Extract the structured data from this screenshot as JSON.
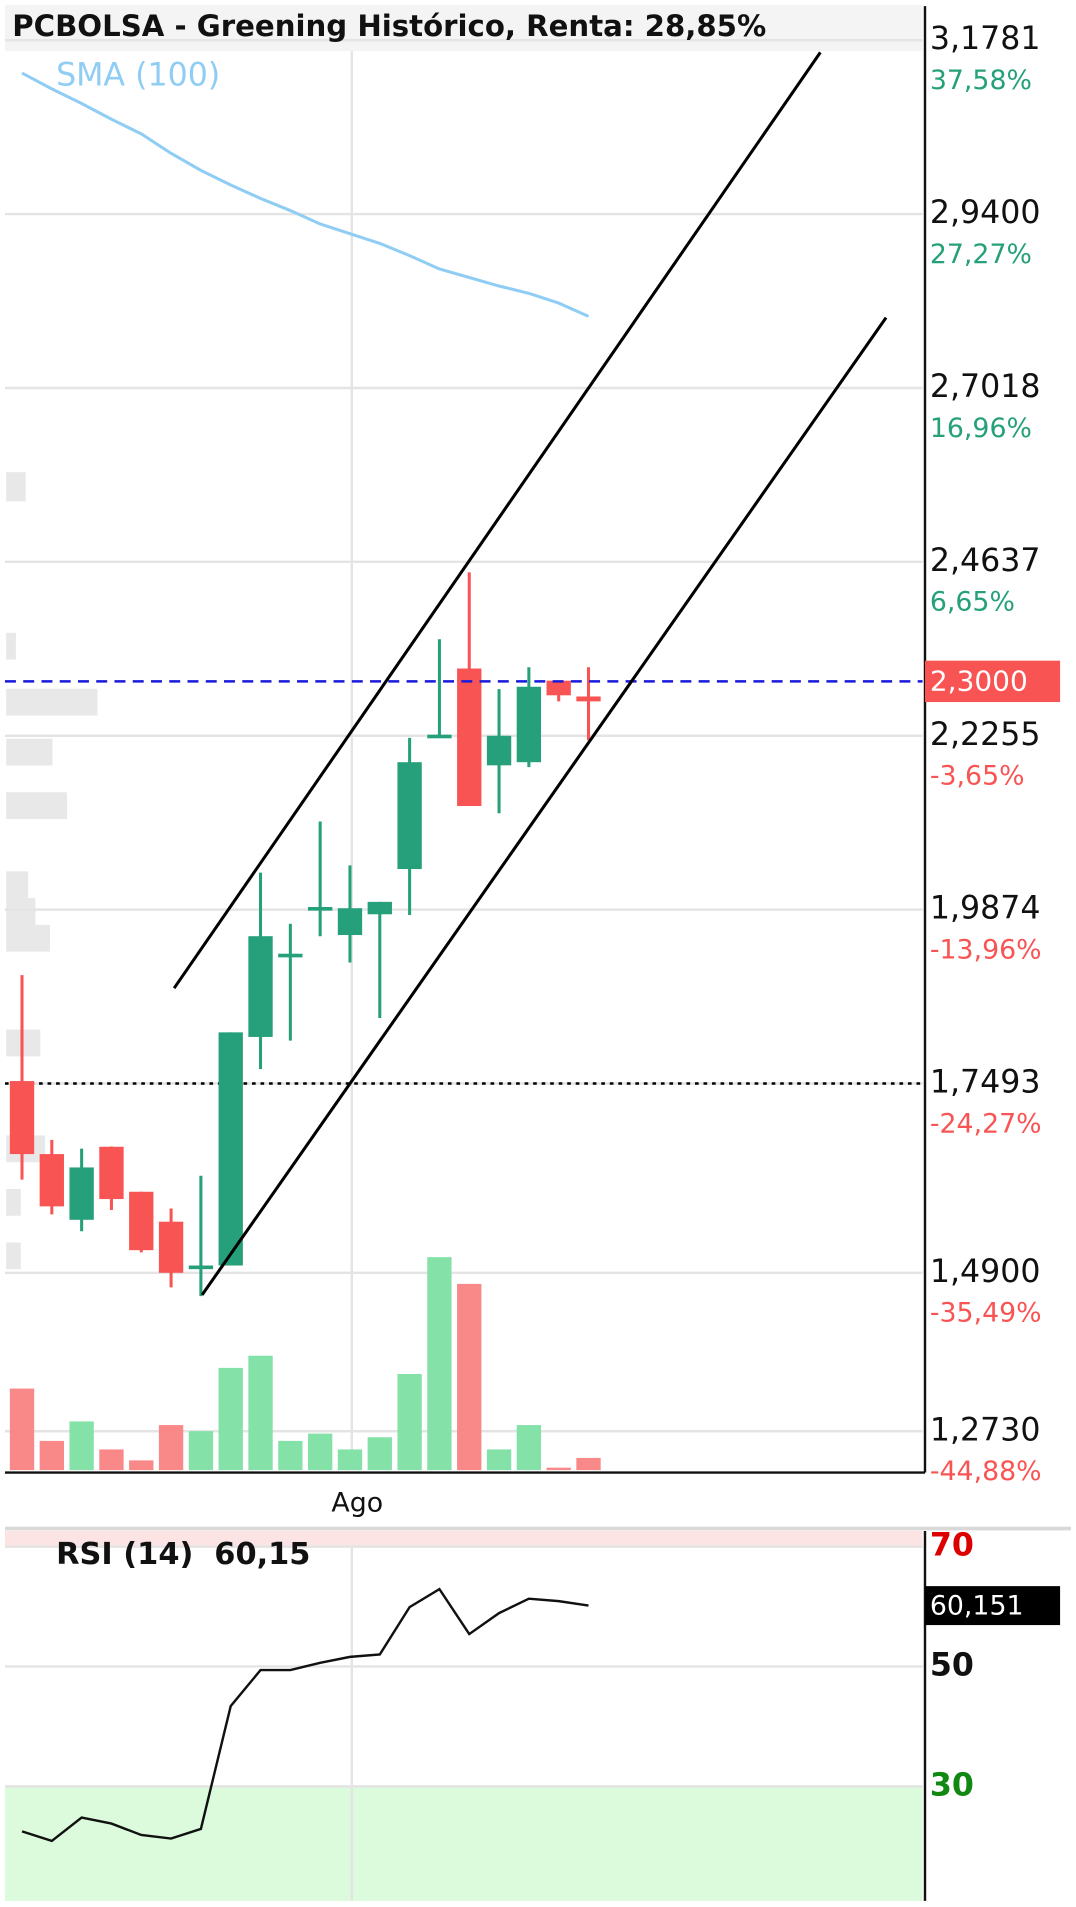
{
  "chart_data": [
    {
      "type": "candlestick",
      "title": "PCBOLSA - Greening Histórico, Renta: 28,85%",
      "categories": [
        null,
        null,
        null,
        null,
        null,
        null,
        null,
        null,
        null,
        null,
        null,
        "Ago",
        null,
        null,
        null,
        null,
        null,
        null,
        null,
        null
      ],
      "open": [
        1.7526,
        1.6526,
        1.5626,
        1.6626,
        1.601,
        1.56,
        1.498,
        1.5,
        1.813,
        1.925,
        1.99,
        1.9526,
        1.981,
        2.043,
        2.225,
        2.3176,
        2.185,
        2.1893,
        2.3009,
        2.2793
      ],
      "close": [
        1.6526,
        1.581,
        1.6343,
        1.591,
        1.521,
        1.49,
        1.5,
        1.8193,
        1.951,
        1.927,
        1.991,
        1.9893,
        1.998,
        2.1893,
        2.227,
        2.1293,
        2.2255,
        2.2926,
        2.2809,
        2.2726
      ],
      "high": [
        1.8976,
        1.672,
        1.66,
        1.663,
        1.601,
        1.578,
        1.623,
        1.8193,
        2.038,
        1.968,
        2.108,
        2.048,
        1.998,
        2.2226,
        2.3576,
        2.4493,
        2.2893,
        2.3193,
        2.3009,
        2.3193
      ],
      "low": [
        1.6176,
        1.57,
        1.547,
        1.576,
        1.518,
        1.47,
        1.458,
        1.5,
        1.769,
        1.808,
        1.951,
        1.915,
        1.839,
        1.98,
        2.2226,
        2.1293,
        2.1193,
        2.1826,
        2.2726,
        2.2193
      ],
      "up_color": "#26a07a",
      "down_color": "#f95454",
      "ylim": [
        1.2198,
        3.2248
      ],
      "yticks": [
        {
          "value": 3.1781,
          "label": "3,1781"
        },
        {
          "value": 2.94,
          "label": "2,9400"
        },
        {
          "value": 2.7018,
          "label": "2,7018"
        },
        {
          "value": 2.4637,
          "label": "2,4637"
        },
        {
          "value": 2.2255,
          "label": "2,2255"
        },
        {
          "value": 1.9874,
          "label": "1,9874"
        },
        {
          "value": 1.7493,
          "label": "1,7493"
        },
        {
          "value": 1.49,
          "label": "1,4900"
        },
        {
          "value": 1.273,
          "label": "1,2730"
        }
      ],
      "ytick_percent_labels": [
        "37,58%",
        "27,27%",
        "16,96%",
        "6,65%",
        "-3,65%",
        "-13,96%",
        "-24,27%",
        "-35,49%",
        "-44,88%"
      ],
      "last_price": {
        "value": 2.3,
        "label": "2,3000"
      },
      "highlight_level": 1.7493,
      "sma": {
        "name": "SMA (100)",
        "color": "#90cdf4",
        "values": [
          3.1331,
          3.1114,
          3.0914,
          3.0698,
          3.0498,
          3.0231,
          2.9998,
          2.9798,
          2.9614,
          2.9448,
          2.9264,
          2.9131,
          2.8998,
          2.8831,
          2.8648,
          2.8531,
          2.8414,
          2.8314,
          2.8181,
          2.7998
        ]
      },
      "volume": {
        "values": [
          67,
          24,
          40,
          17,
          8,
          37,
          32,
          84,
          94,
          24,
          30,
          17,
          27,
          79,
          175,
          153,
          17,
          37,
          2,
          10
        ],
        "up_color": "#84e2a9",
        "down_color": "#f98888"
      },
      "grid": true
    },
    {
      "type": "line",
      "title": "RSI (14)",
      "value_labels": [
        "60,15",
        "60,151"
      ],
      "series": [
        {
          "name": "RSI (14)",
          "color": "#111111",
          "values": [
            22.5,
            20.9,
            24.8,
            23.8,
            21.9,
            21.3,
            22.9,
            43.4,
            49.4,
            49.4,
            50.6,
            51.6,
            52.0,
            59.9,
            62.9,
            55.4,
            58.9,
            61.3,
            60.9,
            60.151
          ]
        }
      ],
      "ylim": [
        10.9,
        72.6
      ],
      "yticks": [
        30,
        50,
        70
      ],
      "ytick_colors": [
        "#118811",
        "#111111",
        "#dd0000"
      ],
      "grid": true
    }
  ]
}
